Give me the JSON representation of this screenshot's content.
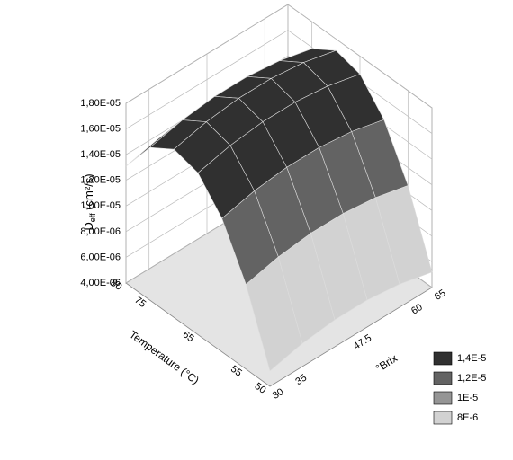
{
  "chart_data": {
    "type": "surface",
    "zlabel": "D",
    "zlabel_sub": "eff",
    "zlabel_unit": " (cm²/s)",
    "tlabel": "Temperature (°C)",
    "blabel": "°Brix",
    "t": [
      50,
      55,
      60,
      65,
      70,
      75,
      80
    ],
    "brix": [
      30,
      37,
      44,
      51,
      58,
      65
    ],
    "z": [
      [
        5.2e-06,
        5.8e-06,
        6.1e-06,
        6.1e-06,
        5.8e-06,
        5.2e-06
      ],
      [
        1.06e-05,
        1.12e-05,
        1.15e-05,
        1.15e-05,
        1.12e-05,
        1.06e-05
      ],
      [
        1.44e-05,
        1.5e-05,
        1.53e-05,
        1.53e-05,
        1.5e-05,
        1.44e-05
      ],
      [
        1.66e-05,
        1.72e-05,
        1.75e-05,
        1.75e-05,
        1.72e-05,
        1.66e-05
      ],
      [
        1.71e-05,
        1.77e-05,
        1.8e-05,
        1.8e-05,
        1.77e-05,
        1.71e-05
      ],
      [
        1.59e-05,
        1.65e-05,
        1.68e-05,
        1.68e-05,
        1.65e-05,
        1.59e-05
      ],
      [
        1.31e-05,
        1.37e-05,
        1.4e-05,
        1.4e-05,
        1.37e-05,
        1.31e-05
      ]
    ],
    "tlim": [
      50,
      80
    ],
    "blim": [
      30,
      65
    ],
    "zlim": [
      4e-06,
      1.8e-05
    ],
    "tticks": [
      50,
      55,
      65,
      75,
      80
    ],
    "bticks": [
      30,
      35,
      47.5,
      60,
      65
    ],
    "zticks": [
      {
        "value": 4e-06,
        "label": "4,00E-06"
      },
      {
        "value": 6e-06,
        "label": "6,00E-06"
      },
      {
        "value": 8e-06,
        "label": "8,00E-06"
      },
      {
        "value": 1e-05,
        "label": "1,00E-05"
      },
      {
        "value": 1.2e-05,
        "label": "1,20E-05"
      },
      {
        "value": 1.4e-05,
        "label": "1,40E-05"
      },
      {
        "value": 1.6e-05,
        "label": "1,60E-05"
      },
      {
        "value": 1.8e-05,
        "label": "1,80E-05"
      }
    ],
    "low_color": "#f0f0f0",
    "legend": [
      {
        "value": 1.4e-05,
        "label": "1,4E-5",
        "color": "#303030"
      },
      {
        "value": 1.2e-05,
        "label": "1,2E-5",
        "color": "#636363"
      },
      {
        "value": 1e-05,
        "label": "1E-5",
        "color": "#959595"
      },
      {
        "value": 8e-06,
        "label": "8E-6",
        "color": "#d2d2d2"
      }
    ]
  }
}
